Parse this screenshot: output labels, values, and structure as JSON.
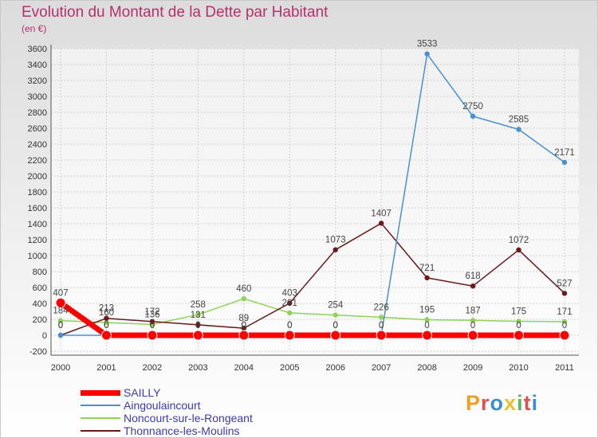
{
  "chart_data": {
    "type": "line",
    "title": "Evolution du Montant de la Dette par Habitant",
    "unit_label": "(en €)",
    "x": [
      "2000",
      "2001",
      "2002",
      "2003",
      "2004",
      "2005",
      "2006",
      "2007",
      "2008",
      "2009",
      "2010",
      "2011"
    ],
    "ylim": [
      -200,
      3600
    ],
    "yticks": [
      -200,
      0,
      200,
      400,
      600,
      800,
      1000,
      1200,
      1400,
      1600,
      1800,
      2000,
      2200,
      2400,
      2600,
      2800,
      3000,
      3200,
      3400,
      3600
    ],
    "grid": true,
    "legend_position": "bottom-left",
    "series": [
      {
        "name": "SAILLY",
        "color": "#ff0000",
        "values": [
          407,
          0,
          0,
          0,
          0,
          0,
          0,
          0,
          0,
          0,
          0,
          0
        ]
      },
      {
        "name": "Aingoulaincourt",
        "color": "#4a90d0",
        "values": [
          0,
          0,
          0,
          0,
          0,
          0,
          0,
          0,
          3533,
          2750,
          2585,
          2171
        ]
      },
      {
        "name": "Noncourt-sur-le-Rongeant",
        "color": "#8fd35a",
        "values": [
          184,
          160,
          136,
          258,
          460,
          281,
          254,
          226,
          195,
          187,
          175,
          171
        ]
      },
      {
        "name": "Thonnance-les-Moulins",
        "color": "#6a1a1a",
        "values": [
          0,
          213,
          172,
          131,
          89,
          403,
          1073,
          1407,
          721,
          618,
          1072,
          527
        ]
      }
    ]
  },
  "logo": {
    "text": "Proxiti"
  }
}
